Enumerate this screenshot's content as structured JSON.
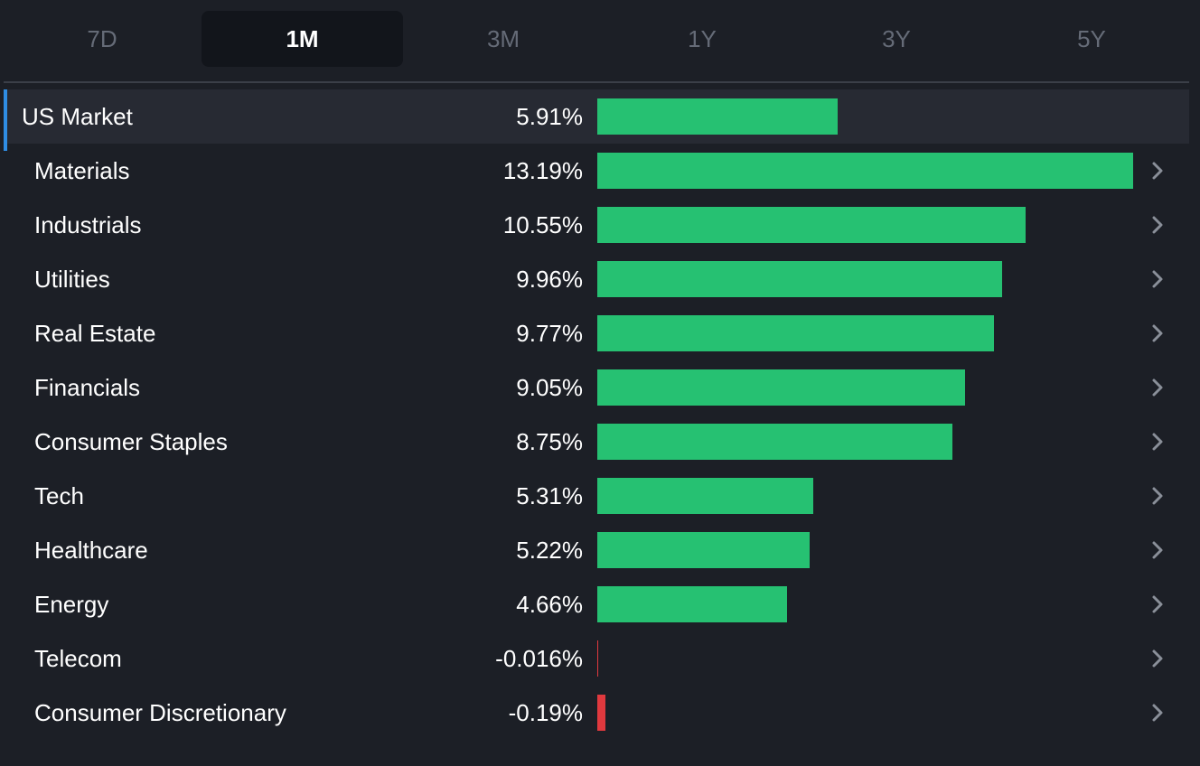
{
  "tabs": [
    {
      "label": "7D",
      "active": false
    },
    {
      "label": "1M",
      "active": true
    },
    {
      "label": "3M",
      "active": false
    },
    {
      "label": "1Y",
      "active": false
    },
    {
      "label": "3Y",
      "active": false
    },
    {
      "label": "5Y",
      "active": false
    }
  ],
  "market": {
    "label": "US Market",
    "value": "5.91%",
    "change": 5.91
  },
  "sectors": [
    {
      "label": "Materials",
      "value": "13.19%",
      "change": 13.19
    },
    {
      "label": "Industrials",
      "value": "10.55%",
      "change": 10.55
    },
    {
      "label": "Utilities",
      "value": "9.96%",
      "change": 9.96
    },
    {
      "label": "Real Estate",
      "value": "9.77%",
      "change": 9.77
    },
    {
      "label": "Financials",
      "value": "9.05%",
      "change": 9.05
    },
    {
      "label": "Consumer Staples",
      "value": "8.75%",
      "change": 8.75
    },
    {
      "label": "Tech",
      "value": "5.31%",
      "change": 5.31
    },
    {
      "label": "Healthcare",
      "value": "5.22%",
      "change": 5.22
    },
    {
      "label": "Energy",
      "value": "4.66%",
      "change": 4.66
    },
    {
      "label": "Telecom",
      "value": "-0.016%",
      "change": -0.016
    },
    {
      "label": "Consumer Discretionary",
      "value": "-0.19%",
      "change": -0.19
    }
  ],
  "colors": {
    "positive": "#26c172",
    "negative": "#e0393e",
    "accent": "#2f8de4",
    "chevron": "#8a8f99"
  },
  "icons": {
    "row_action": "chevron-right-icon"
  }
}
